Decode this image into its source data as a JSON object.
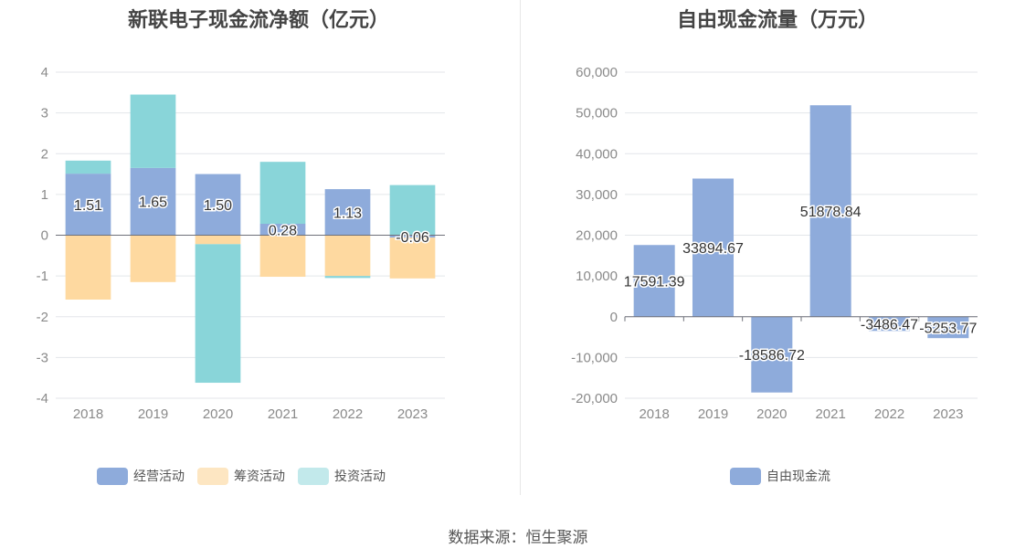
{
  "source_text": "数据来源：恒生聚源",
  "chart_data": [
    {
      "type": "bar",
      "stacked": true,
      "title": "新联电子现金流净额（亿元）",
      "categories": [
        "2018",
        "2019",
        "2020",
        "2021",
        "2022",
        "2023"
      ],
      "ylim": [
        -4,
        4
      ],
      "yticks": [
        "-4",
        "-3",
        "-2",
        "-1",
        "0",
        "1",
        "2",
        "3",
        "4"
      ],
      "grid": true,
      "legend_position": "bottom",
      "series": [
        {
          "name": "经营活动",
          "color": "#8eabdb",
          "values": [
            1.51,
            1.65,
            1.5,
            0.28,
            1.13,
            -0.06
          ],
          "labels": [
            "1.51",
            "1.65",
            "1.50",
            "0.28",
            "1.13",
            "-0.06"
          ]
        },
        {
          "name": "筹资活动",
          "color": "#fed9a0",
          "values": [
            -1.58,
            -1.15,
            -0.22,
            -1.02,
            -1.0,
            -1.0
          ]
        },
        {
          "name": "投资活动",
          "color": "#89d5d9",
          "values": [
            0.32,
            1.8,
            -3.4,
            1.52,
            -0.05,
            1.23
          ]
        }
      ]
    },
    {
      "type": "bar",
      "title": "自由现金流量（万元）",
      "categories": [
        "2018",
        "2019",
        "2020",
        "2021",
        "2022",
        "2023"
      ],
      "ylim": [
        -20000,
        60000
      ],
      "yticks": [
        "-20,000",
        "-10,000",
        "0",
        "10,000",
        "20,000",
        "30,000",
        "40,000",
        "50,000",
        "60,000"
      ],
      "grid": true,
      "legend_position": "bottom",
      "series": [
        {
          "name": "自由现金流",
          "color": "#8eabdb",
          "values": [
            17591.39,
            33894.67,
            -18586.72,
            51878.84,
            -3486.47,
            -5253.77
          ],
          "labels": [
            "17591.39",
            "33894.67",
            "-18586.72",
            "51878.84",
            "-3486.47",
            "-5253.77"
          ]
        }
      ]
    }
  ]
}
